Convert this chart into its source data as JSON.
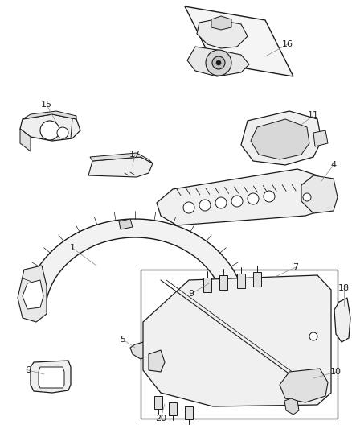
{
  "bg_color": "#ffffff",
  "line_color": "#1a1a1a",
  "label_color": "#222222",
  "fig_width": 4.38,
  "fig_height": 5.33,
  "dpi": 100
}
